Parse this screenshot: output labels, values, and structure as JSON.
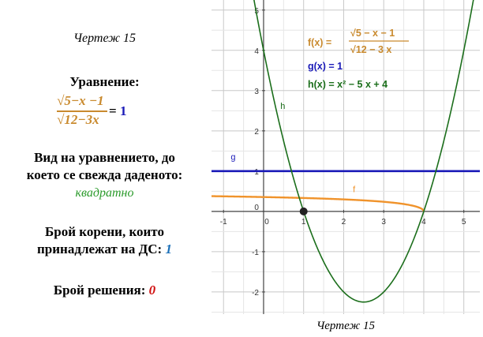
{
  "left": {
    "caption": "Чертеж 15",
    "equation_heading": "Уравнение:",
    "equation": {
      "numerator": "√5−x −1",
      "denominator": "√12−3x",
      "equals": "=",
      "rhs": "1"
    },
    "type_label_line1": "Вид на уравнението, до",
    "type_label_line2": "което се свежда даденото:",
    "type_value": "квадратно",
    "roots_label_line1": "Брой корени, които",
    "roots_label_line2": "принадлежат на ДС:",
    "roots_value": "1",
    "solutions_label": "Брой решения:",
    "solutions_value": "0"
  },
  "colors": {
    "f": "#f0932b",
    "g": "#1a1ab8",
    "h": "#1b6e1b",
    "green_text": "#2a9a2a",
    "blue_text": "#1a6fb8",
    "red_text": "#d01010",
    "eq_orange": "#c98a2e"
  },
  "chart_data": {
    "type": "line",
    "xlim": [
      -1.3,
      5.4
    ],
    "ylim": [
      -2.55,
      5.25
    ],
    "x_ticks": [
      "-1",
      "0",
      "1",
      "2",
      "3",
      "4",
      "5"
    ],
    "y_ticks": [
      "-2",
      "-1",
      "0",
      "1",
      "2",
      "3",
      "4",
      "5"
    ],
    "grid": true,
    "legend": {
      "f": {
        "name": "f",
        "expr_label": "f(x) = ",
        "numerator": "√5 − x − 1",
        "denominator": "√12 − 3 x"
      },
      "g": {
        "name": "g",
        "expr_label": "g(x) = 1"
      },
      "h": {
        "name": "h",
        "expr_label": "h(x) = x² − 5 x + 4"
      }
    },
    "series": [
      {
        "name": "f",
        "function": "(sqrt(5-x)-1)/sqrt(12-3x)",
        "domain": [
          -1.3,
          4
        ]
      },
      {
        "name": "g",
        "function": "1",
        "domain": [
          -1.3,
          5.4
        ]
      },
      {
        "name": "h",
        "function": "x^2-5x+4",
        "domain": [
          -1.3,
          5.4
        ]
      }
    ],
    "point": {
      "x": 1,
      "y": 0
    },
    "caption": "Чертеж 15"
  }
}
